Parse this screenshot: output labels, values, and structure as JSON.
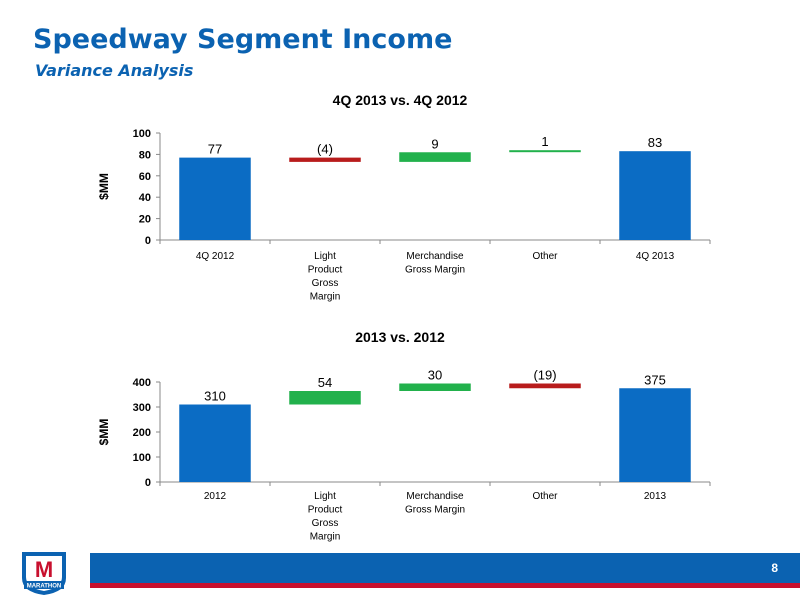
{
  "slide": {
    "title": "Speedway Segment Income",
    "subtitle": "Variance Analysis",
    "page_number": "8"
  },
  "logo": {
    "text": "MARATHON",
    "letter": "M"
  },
  "colors": {
    "total": "#0b6cc4",
    "increase": "#22b14c",
    "decrease": "#b81c1c",
    "title": "#0b62b1",
    "footer": "#0b62b1",
    "footer_stripe": "#c8102e"
  },
  "chart_data": [
    {
      "type": "bar",
      "subtype": "waterfall",
      "title": "4Q 2013 vs. 4Q 2012",
      "ylabel": "$MM",
      "ylim": [
        0,
        100
      ],
      "yticks": [
        0,
        20,
        40,
        60,
        80,
        100
      ],
      "categories": [
        "4Q 2012",
        "Light Product Gross Margin",
        "Merchandise Gross Margin",
        "Other",
        "4Q 2013"
      ],
      "values": [
        77,
        -4,
        9,
        1,
        83
      ],
      "kinds": [
        "total",
        "delta",
        "delta",
        "delta",
        "total"
      ],
      "data_labels": [
        "77",
        "(4)",
        "9",
        "1",
        "83"
      ]
    },
    {
      "type": "bar",
      "subtype": "waterfall",
      "title": "2013 vs. 2012",
      "ylabel": "$MM",
      "ylim": [
        0,
        400
      ],
      "yticks": [
        0,
        100,
        200,
        300,
        400
      ],
      "categories": [
        "2012",
        "Light Product Gross Margin",
        "Merchandise Gross Margin",
        "Other",
        "2013"
      ],
      "values": [
        310,
        54,
        30,
        -19,
        375
      ],
      "kinds": [
        "total",
        "delta",
        "delta",
        "delta",
        "total"
      ],
      "data_labels": [
        "310",
        "54",
        "30",
        "(19)",
        "375"
      ]
    }
  ]
}
